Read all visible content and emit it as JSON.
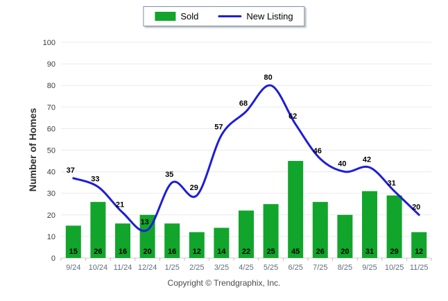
{
  "chart_data": {
    "type": "bar+line",
    "title": "",
    "xlabel": "",
    "ylabel": "Number of Homes",
    "ylim": [
      0,
      100
    ],
    "ytick_step": 10,
    "grid": true,
    "legend_position": "top-center",
    "categories": [
      "9/24",
      "10/24",
      "11/24",
      "12/24",
      "1/25",
      "2/25",
      "3/25",
      "4/25",
      "5/25",
      "6/25",
      "7/25",
      "8/25",
      "9/25",
      "10/25",
      "11/25"
    ],
    "series": [
      {
        "name": "Sold",
        "type": "bar",
        "color": "#12a52b",
        "values": [
          15,
          26,
          16,
          20,
          16,
          12,
          14,
          22,
          25,
          45,
          26,
          20,
          31,
          29,
          12
        ]
      },
      {
        "name": "New Listing",
        "type": "line",
        "color": "#1d1dd8",
        "values": [
          37,
          33,
          21,
          13,
          35,
          29,
          57,
          68,
          80,
          62,
          46,
          40,
          42,
          31,
          20
        ]
      }
    ],
    "colors": {
      "gridline": "#eaeaea",
      "axis_line": "#cfcfcf",
      "tick": "#bdbdbd",
      "y_tick_label": "#3a3a3a",
      "x_tick_label": "#5f6e7e",
      "value_label": "#000000"
    }
  },
  "footer": {
    "copyright": "Copyright © Trendgraphix, Inc."
  }
}
